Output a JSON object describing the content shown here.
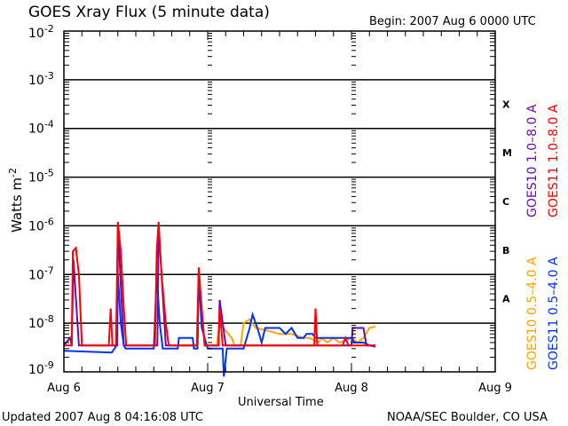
{
  "chart_data": {
    "type": "line",
    "title": "GOES Xray Flux (5 minute data)",
    "begin_label": "Begin:  2007 Aug 6 0000 UTC",
    "xlabel": "Universal Time",
    "ylabel": "Watts m",
    "ylabel_sup": "-2",
    "yscale": "log",
    "ylim": [
      1e-09,
      0.01
    ],
    "xlim_hours": [
      0,
      72
    ],
    "x_ticks": [
      {
        "hour": 0,
        "label": "Aug 6"
      },
      {
        "hour": 24,
        "label": "Aug 7"
      },
      {
        "hour": 48,
        "label": "Aug 8"
      },
      {
        "hour": 72,
        "label": "Aug 9"
      }
    ],
    "y_ticks": [
      {
        "exp": -2
      },
      {
        "exp": -3
      },
      {
        "exp": -4
      },
      {
        "exp": -5
      },
      {
        "exp": -6
      },
      {
        "exp": -7
      },
      {
        "exp": -8
      },
      {
        "exp": -9
      }
    ],
    "y_tick_base": "10",
    "flare_classes": [
      {
        "label": "X",
        "exp": -3.5
      },
      {
        "label": "M",
        "exp": -4.5
      },
      {
        "label": "C",
        "exp": -5.5
      },
      {
        "label": "B",
        "exp": -6.5
      },
      {
        "label": "A",
        "exp": -7.5
      }
    ],
    "series": [
      {
        "name": "GOES10 0.5-4.0 A",
        "legend": "GOES10 0.5–4.0 A",
        "color": "#ffa500",
        "points": [
          [
            25.5,
            3.5e-09
          ],
          [
            26,
            1e-08
          ],
          [
            27,
            7e-09
          ],
          [
            28,
            5e-09
          ],
          [
            28.5,
            3.5e-09
          ],
          [
            29.5,
            3.5e-09
          ],
          [
            30,
            1e-08
          ],
          [
            31,
            1.2e-08
          ],
          [
            32,
            8e-09
          ],
          [
            34,
            7e-09
          ],
          [
            36,
            6e-09
          ],
          [
            38,
            6e-09
          ],
          [
            40,
            5e-09
          ],
          [
            41,
            5e-09
          ],
          [
            42.5,
            4e-09
          ],
          [
            43,
            5e-09
          ],
          [
            44,
            4e-09
          ],
          [
            45,
            5e-09
          ],
          [
            46,
            4e-09
          ],
          [
            48,
            5e-09
          ],
          [
            49,
            4e-09
          ],
          [
            50,
            5e-09
          ],
          [
            51,
            8e-09
          ],
          [
            52,
            8.5e-09
          ]
        ]
      },
      {
        "name": "GOES10 1.0-8.0 A",
        "legend": "GOES10 1.0–8.0 A",
        "color": "#6a0dad",
        "points": [
          [
            0,
            3.5e-09
          ],
          [
            1,
            5e-09
          ],
          [
            1.3,
            3.5e-09
          ],
          [
            1.6,
            2e-07
          ],
          [
            2.5,
            3.5e-09
          ],
          [
            8.9,
            3.5e-09
          ],
          [
            9,
            1e-06
          ],
          [
            10,
            3.5e-09
          ],
          [
            15.6,
            3.5e-09
          ],
          [
            15.8,
            1e-06
          ],
          [
            17,
            3.5e-09
          ],
          [
            22.3,
            3.5e-09
          ],
          [
            22.5,
            1e-07
          ],
          [
            23.5,
            3.5e-09
          ],
          [
            25.8,
            3.5e-09
          ],
          [
            26,
            3e-08
          ],
          [
            27,
            3.5e-09
          ],
          [
            48,
            3.5e-09
          ],
          [
            48.2,
            8e-09
          ],
          [
            50,
            8e-09
          ],
          [
            50.5,
            3.5e-09
          ],
          [
            52,
            3.5e-09
          ]
        ]
      },
      {
        "name": "GOES11 0.5-4.0 A",
        "legend": "GOES11 0.5–4.0 A",
        "color": "#0033ff",
        "points": [
          [
            0,
            2.7e-09
          ],
          [
            8,
            2.5e-09
          ],
          [
            8.8,
            3.5e-09
          ],
          [
            9,
            1e-07
          ],
          [
            9.5,
            1e-08
          ],
          [
            10,
            3.5e-09
          ],
          [
            10.3,
            3e-09
          ],
          [
            15,
            3e-09
          ],
          [
            15.5,
            1e-07
          ],
          [
            16,
            1e-08
          ],
          [
            16.5,
            3e-09
          ],
          [
            19,
            3e-09
          ],
          [
            19.2,
            5e-09
          ],
          [
            21.5,
            5e-09
          ],
          [
            21.7,
            3e-09
          ],
          [
            22.3,
            3e-09
          ],
          [
            22.5,
            1e-07
          ],
          [
            23,
            8e-09
          ],
          [
            24,
            3e-09
          ],
          [
            26.5,
            3e-09
          ],
          [
            26.7,
            8e-10
          ],
          [
            27.2,
            3e-09
          ],
          [
            30,
            3e-09
          ],
          [
            31,
            8e-09
          ],
          [
            31.5,
            1.5e-08
          ],
          [
            32.3,
            8e-09
          ],
          [
            33,
            4e-09
          ],
          [
            33.6,
            8e-09
          ],
          [
            36,
            8e-09
          ],
          [
            37,
            6e-09
          ],
          [
            38,
            8e-09
          ],
          [
            39,
            5e-09
          ],
          [
            40,
            5e-09
          ],
          [
            40.5,
            6e-09
          ],
          [
            41.5,
            6e-09
          ],
          [
            42,
            5e-09
          ],
          [
            48,
            5e-09
          ],
          [
            48.5,
            4e-09
          ],
          [
            50,
            4e-09
          ],
          [
            51,
            3.5e-09
          ],
          [
            52,
            3.3e-09
          ]
        ]
      },
      {
        "name": "GOES11 1.0-8.0 A",
        "legend": "GOES11 1.0–8.0 A",
        "color": "#ff0000",
        "points": [
          [
            0,
            3.5e-09
          ],
          [
            1.3,
            3.5e-09
          ],
          [
            1.5,
            3e-07
          ],
          [
            2,
            3.5e-07
          ],
          [
            2.5,
            1e-07
          ],
          [
            3,
            3.5e-09
          ],
          [
            7.5,
            3.5e-09
          ],
          [
            7.8,
            2e-08
          ],
          [
            8.1,
            3.5e-09
          ],
          [
            8.7,
            3.5e-09
          ],
          [
            9,
            1.2e-06
          ],
          [
            9.5,
            3e-07
          ],
          [
            10,
            2e-08
          ],
          [
            10.4,
            3.5e-09
          ],
          [
            15.2,
            3.5e-09
          ],
          [
            15.5,
            3e-07
          ],
          [
            15.8,
            1.2e-06
          ],
          [
            16.3,
            1e-07
          ],
          [
            17,
            1e-08
          ],
          [
            17.5,
            3.5e-09
          ],
          [
            22.2,
            3.5e-09
          ],
          [
            22.5,
            1.4e-07
          ],
          [
            23,
            2e-08
          ],
          [
            23.5,
            3.5e-09
          ],
          [
            25.8,
            3.5e-09
          ],
          [
            26,
            2e-08
          ],
          [
            26.5,
            3.5e-09
          ],
          [
            41.8,
            3.5e-09
          ],
          [
            42,
            2e-08
          ],
          [
            42.3,
            3.5e-09
          ],
          [
            46.5,
            3.5e-09
          ],
          [
            47,
            5e-09
          ],
          [
            47.5,
            3.5e-09
          ],
          [
            52,
            3.5e-09
          ]
        ]
      }
    ]
  },
  "footer": {
    "updated": "Updated 2007 Aug  8 04:16:08 UTC",
    "credit": "NOAA/SEC Boulder, CO USA"
  }
}
